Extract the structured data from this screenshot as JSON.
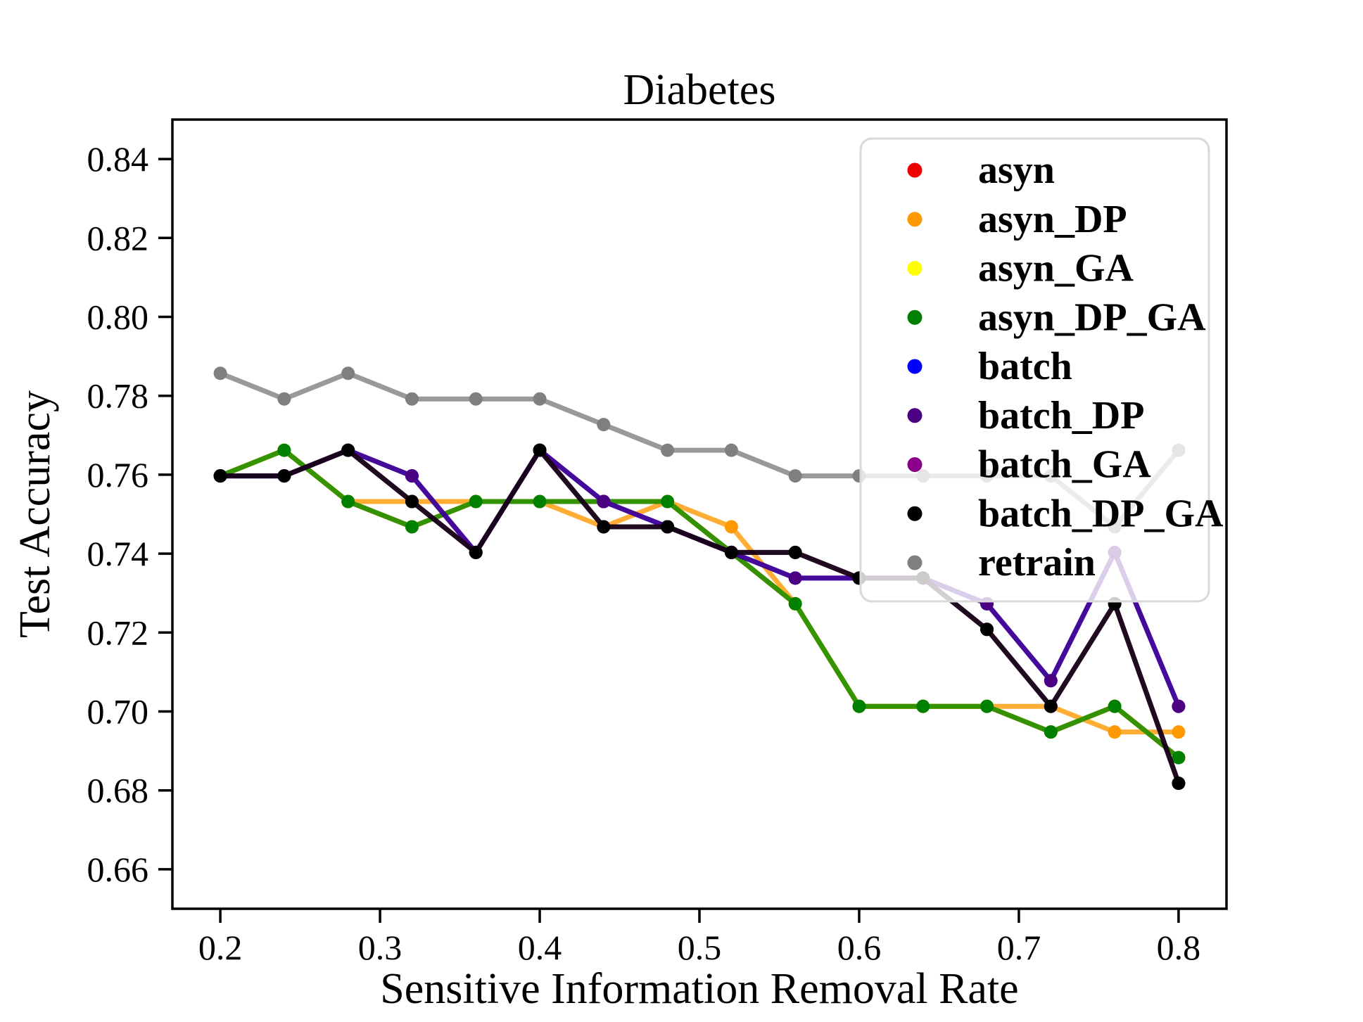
{
  "chart_data": {
    "type": "line",
    "title": "Diabetes",
    "xlabel": "Sensitive Information Removal Rate",
    "ylabel": "Test Accuracy",
    "grid": false,
    "legend_position": "upper right",
    "xlim": [
      0.17,
      0.83
    ],
    "ylim": [
      0.65,
      0.85
    ],
    "xticks": {
      "values": [
        0.2,
        0.3,
        0.4,
        0.5,
        0.6,
        0.7,
        0.8
      ],
      "labels": [
        "0.2",
        "0.3",
        "0.4",
        "0.5",
        "0.6",
        "0.7",
        "0.8"
      ]
    },
    "yticks": {
      "values": [
        0.66,
        0.68,
        0.7,
        0.72,
        0.74,
        0.76,
        0.78,
        0.8,
        0.82,
        0.84
      ],
      "labels": [
        "0.66",
        "0.68",
        "0.70",
        "0.72",
        "0.74",
        "0.76",
        "0.78",
        "0.80",
        "0.82",
        "0.84"
      ]
    },
    "x": [
      0.2,
      0.24,
      0.28,
      0.32,
      0.36,
      0.4,
      0.44,
      0.48,
      0.52,
      0.56,
      0.6,
      0.64,
      0.68,
      0.72,
      0.76,
      0.8
    ],
    "series": [
      {
        "name": "asyn",
        "color": "#ee0000",
        "values": [
          0.7597,
          0.7662,
          0.7532,
          0.7468,
          0.7532,
          0.7532,
          0.7532,
          0.7532,
          0.7403,
          0.7273,
          0.7013,
          0.7013,
          0.7013,
          0.6948,
          0.7013,
          0.6883
        ]
      },
      {
        "name": "asyn_DP",
        "color": "#ff9902",
        "values": [
          0.7597,
          0.7662,
          0.7532,
          0.7532,
          0.7532,
          0.7532,
          0.7468,
          0.7532,
          0.7468,
          0.7273,
          0.7013,
          0.7013,
          0.7013,
          0.7013,
          0.6948,
          0.6948
        ]
      },
      {
        "name": "asyn_GA",
        "color": "#ffff00",
        "values": [
          0.7597,
          0.7662,
          0.7532,
          0.7468,
          0.7532,
          0.7532,
          0.7532,
          0.7532,
          0.7403,
          0.7273,
          0.7013,
          0.7013,
          0.7013,
          0.6948,
          0.7013,
          0.6883
        ]
      },
      {
        "name": "asyn_DP_GA",
        "color": "#008000",
        "values": [
          0.7597,
          0.7662,
          0.7532,
          0.7468,
          0.7532,
          0.7532,
          0.7532,
          0.7532,
          0.7403,
          0.7273,
          0.7013,
          0.7013,
          0.7013,
          0.6948,
          0.7013,
          0.6883
        ]
      },
      {
        "name": "batch",
        "color": "#0000ff",
        "values": [
          0.7597,
          0.7597,
          0.7662,
          0.7597,
          0.7403,
          0.7662,
          0.7532,
          0.7468,
          0.7403,
          0.7338,
          0.7338,
          0.7338,
          0.7273,
          0.7078,
          0.7403,
          0.7013
        ]
      },
      {
        "name": "batch_DP",
        "color": "#4b0082",
        "values": [
          0.7597,
          0.7597,
          0.7662,
          0.7597,
          0.7403,
          0.7662,
          0.7532,
          0.7468,
          0.7403,
          0.7338,
          0.7338,
          0.7338,
          0.7273,
          0.7078,
          0.7403,
          0.7013
        ]
      },
      {
        "name": "batch_GA",
        "color": "#8b008b",
        "values": [
          0.7597,
          0.7597,
          0.7662,
          0.7532,
          0.7403,
          0.7662,
          0.7468,
          0.7468,
          0.7403,
          0.7403,
          0.7338,
          0.7338,
          0.7208,
          0.7013,
          0.7273,
          0.6818
        ]
      },
      {
        "name": "batch_DP_GA",
        "color": "#000000",
        "values": [
          0.7597,
          0.7597,
          0.7662,
          0.7532,
          0.7403,
          0.7662,
          0.7468,
          0.7468,
          0.7403,
          0.7403,
          0.7338,
          0.7338,
          0.7208,
          0.7013,
          0.7273,
          0.6818
        ]
      },
      {
        "name": "retrain",
        "color": "#7f7f7f",
        "values": [
          0.7857,
          0.7792,
          0.7857,
          0.7792,
          0.7792,
          0.7792,
          0.7727,
          0.7662,
          0.7662,
          0.7597,
          0.7597,
          0.7597,
          0.7597,
          0.7597,
          0.7468,
          0.7662
        ]
      }
    ]
  }
}
